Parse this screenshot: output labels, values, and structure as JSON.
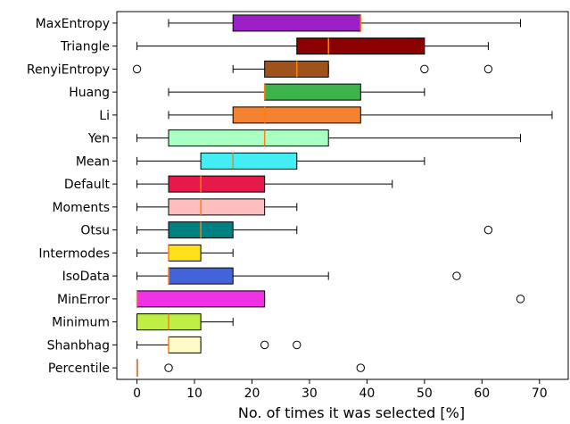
{
  "chart_data": {
    "type": "boxplot",
    "orientation": "horizontal",
    "xlabel": "No. of times it was selected [%]",
    "xlim": [
      -3.5,
      75
    ],
    "xticks": [
      0,
      10,
      20,
      30,
      40,
      50,
      60,
      70
    ],
    "grid": false,
    "median_color": "#ff7f0e",
    "whisker_color": "#000000",
    "categories": [
      "MaxEntropy",
      "Triangle",
      "RenyiEntropy",
      "Huang",
      "Li",
      "Yen",
      "Mean",
      "Default",
      "Moments",
      "Otsu",
      "Intermodes",
      "IsoData",
      "MinError",
      "Minimum",
      "Shanbhag",
      "Percentile"
    ],
    "boxes": [
      {
        "label": "MaxEntropy",
        "color": "#9b1fc7",
        "whislo": 5.5,
        "q1": 16.7,
        "med": 38.9,
        "q3": 38.9,
        "whishi": 66.7,
        "fliers": []
      },
      {
        "label": "Triangle",
        "color": "#8b0000",
        "whislo": 0,
        "q1": 27.8,
        "med": 33.3,
        "q3": 50.0,
        "whishi": 61.1,
        "fliers": []
      },
      {
        "label": "RenyiEntropy",
        "color": "#a0521d",
        "whislo": 16.7,
        "q1": 22.2,
        "med": 27.8,
        "q3": 33.3,
        "whishi": 33.3,
        "fliers": [
          0,
          50.0,
          61.1
        ]
      },
      {
        "label": "Huang",
        "color": "#3cb44b",
        "whislo": 5.5,
        "q1": 22.2,
        "med": 22.2,
        "q3": 38.9,
        "whishi": 50.0,
        "fliers": []
      },
      {
        "label": "Li",
        "color": "#f58231",
        "whislo": 5.5,
        "q1": 16.7,
        "med": 22.2,
        "q3": 38.9,
        "whishi": 72.2,
        "fliers": []
      },
      {
        "label": "Yen",
        "color": "#aaffc3",
        "whislo": 0,
        "q1": 5.5,
        "med": 22.2,
        "q3": 33.3,
        "whishi": 66.7,
        "fliers": []
      },
      {
        "label": "Mean",
        "color": "#42eef4",
        "whislo": 0,
        "q1": 11.1,
        "med": 16.7,
        "q3": 27.8,
        "whishi": 50.0,
        "fliers": []
      },
      {
        "label": "Default",
        "color": "#e6194b",
        "whislo": 0,
        "q1": 5.5,
        "med": 11.1,
        "q3": 22.2,
        "whishi": 44.4,
        "fliers": []
      },
      {
        "label": "Moments",
        "color": "#ffbebe",
        "whislo": 0,
        "q1": 5.5,
        "med": 11.1,
        "q3": 22.2,
        "whishi": 27.8,
        "fliers": []
      },
      {
        "label": "Otsu",
        "color": "#008080",
        "whislo": 0,
        "q1": 5.5,
        "med": 11.1,
        "q3": 16.7,
        "whishi": 27.8,
        "fliers": [
          61.1
        ]
      },
      {
        "label": "Intermodes",
        "color": "#ffe119",
        "whislo": 0,
        "q1": 5.5,
        "med": 5.5,
        "q3": 11.1,
        "whishi": 16.7,
        "fliers": []
      },
      {
        "label": "IsoData",
        "color": "#4363d8",
        "whislo": 0,
        "q1": 5.5,
        "med": 5.5,
        "q3": 16.7,
        "whishi": 33.3,
        "fliers": [
          55.6
        ]
      },
      {
        "label": "MinError",
        "color": "#f032e6",
        "whislo": 0,
        "q1": 0,
        "med": 0,
        "q3": 22.2,
        "whishi": 22.2,
        "fliers": [
          66.7
        ]
      },
      {
        "label": "Minimum",
        "color": "#bfef45",
        "whislo": 0,
        "q1": 0,
        "med": 5.5,
        "q3": 11.1,
        "whishi": 16.7,
        "fliers": []
      },
      {
        "label": "Shanbhag",
        "color": "#fffac8",
        "whislo": 0,
        "q1": 5.5,
        "med": 5.5,
        "q3": 11.1,
        "whishi": 11.1,
        "fliers": [
          22.2,
          27.8
        ]
      },
      {
        "label": "Percentile",
        "color": "#ffd8b1",
        "whislo": 0,
        "q1": 0,
        "med": 0,
        "q3": 0,
        "whishi": 0,
        "fliers": [
          5.5,
          38.9
        ]
      }
    ]
  }
}
